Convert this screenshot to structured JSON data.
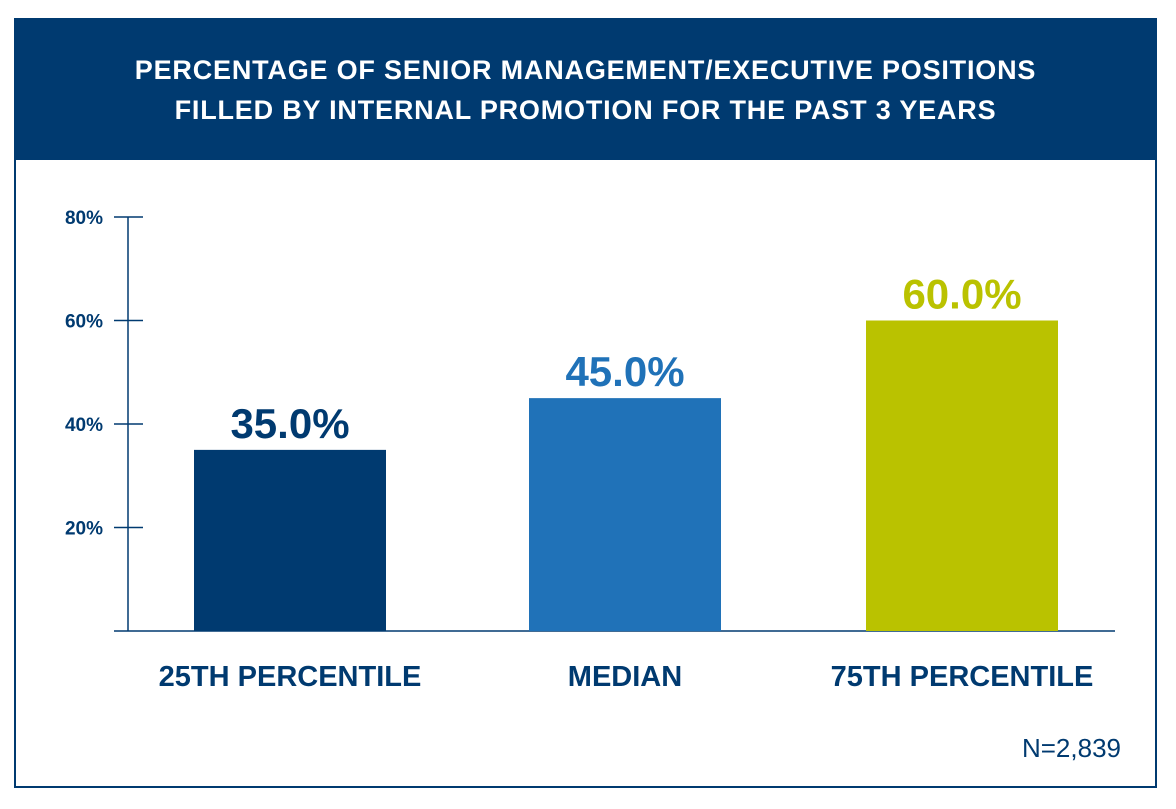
{
  "chart_data": {
    "type": "bar",
    "title": [
      "PERCENTAGE OF SENIOR MANAGEMENT/EXECUTIVE POSITIONS",
      "FILLED BY INTERNAL PROMOTION FOR THE PAST 3 YEARS"
    ],
    "categories": [
      "25TH PERCENTILE",
      "MEDIAN",
      "75TH PERCENTILE"
    ],
    "values": [
      35.0,
      45.0,
      60.0
    ],
    "data_labels": [
      "35.0%",
      "45.0%",
      "60.0%"
    ],
    "colors": [
      "#003a70",
      "#2072b8",
      "#bac200"
    ],
    "yticks": [
      20,
      40,
      60,
      80
    ],
    "ytick_labels": [
      "20%",
      "40%",
      "60%",
      "80%"
    ],
    "ylim": [
      0,
      80
    ],
    "grid": false,
    "note": "N=2,839"
  }
}
